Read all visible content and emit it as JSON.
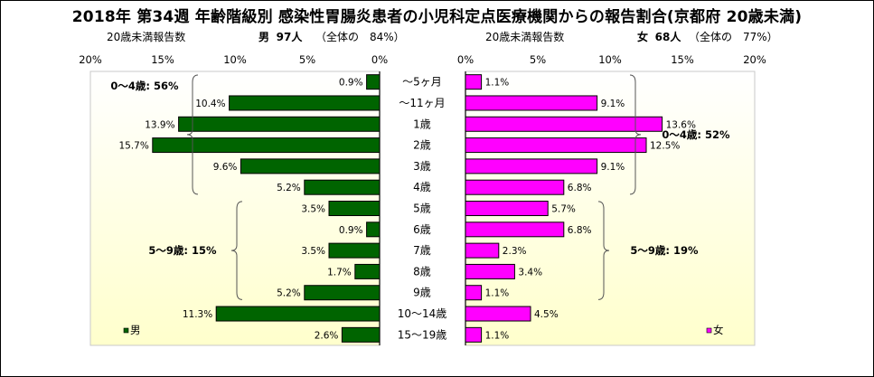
{
  "title": "2018年 第34週 年齢階級別 感染性胃腸炎患者の小児科定点医療機関からの報告割合(京都府 20歳未満)",
  "left_header": {
    "metric": "20歳未満報告数",
    "sex": "男",
    "count": "97人",
    "share": "（全体の　84%）"
  },
  "right_header": {
    "metric": "20歳未満報告数",
    "sex": "女",
    "count": "68人",
    "share": "（全体の　77%）"
  },
  "colors": {
    "male": "#006400",
    "female": "#ff00ff",
    "plot_bg_top": "#ffffff",
    "plot_bg_bottom": "#ffffcc"
  },
  "chart_data": [
    {
      "type": "bar",
      "orientation": "horizontal",
      "direction": "right-to-left",
      "categories": [
        "～5ヶ月",
        "～11ヶ月",
        "1歳",
        "2歳",
        "3歳",
        "4歳",
        "5歳",
        "6歳",
        "7歳",
        "8歳",
        "9歳",
        "10～14歳",
        "15～19歳"
      ],
      "series": [
        {
          "name": "男",
          "values": [
            0.9,
            10.4,
            13.9,
            15.7,
            9.6,
            5.2,
            3.5,
            0.9,
            3.5,
            1.7,
            5.2,
            11.3,
            2.6
          ],
          "labels": [
            "0.9%",
            "10.4%",
            "13.9%",
            "15.7%",
            "9.6%",
            "5.2%",
            "3.5%",
            "0.9%",
            "3.5%",
            "1.7%",
            "5.2%",
            "11.3%",
            "2.6%"
          ]
        }
      ],
      "xlim": [
        0,
        20
      ],
      "xticks": [
        "20%",
        "15%",
        "10%",
        "5%",
        "0%"
      ],
      "legend": "bottom-left",
      "groups": [
        {
          "label": "0～4歳: 56%",
          "from": 0,
          "to": 5
        },
        {
          "label": "5～9歳: 15%",
          "from": 6,
          "to": 10
        }
      ]
    },
    {
      "type": "bar",
      "orientation": "horizontal",
      "direction": "left-to-right",
      "categories": [
        "～5ヶ月",
        "～11ヶ月",
        "1歳",
        "2歳",
        "3歳",
        "4歳",
        "5歳",
        "6歳",
        "7歳",
        "8歳",
        "9歳",
        "10～14歳",
        "15～19歳"
      ],
      "series": [
        {
          "name": "女",
          "values": [
            1.1,
            9.1,
            13.6,
            12.5,
            9.1,
            6.8,
            5.7,
            6.8,
            2.3,
            3.4,
            1.1,
            4.5,
            1.1
          ],
          "labels": [
            "1.1%",
            "9.1%",
            "13.6%",
            "12.5%",
            "9.1%",
            "6.8%",
            "5.7%",
            "6.8%",
            "2.3%",
            "3.4%",
            "1.1%",
            "4.5%",
            "1.1%"
          ]
        }
      ],
      "xlim": [
        0,
        20
      ],
      "xticks": [
        "0%",
        "5%",
        "10%",
        "15%",
        "20%"
      ],
      "legend": "bottom-right",
      "groups": [
        {
          "label": "0～4歳: 52%",
          "from": 0,
          "to": 5
        },
        {
          "label": "5～9歳: 19%",
          "from": 6,
          "to": 10
        }
      ]
    }
  ]
}
